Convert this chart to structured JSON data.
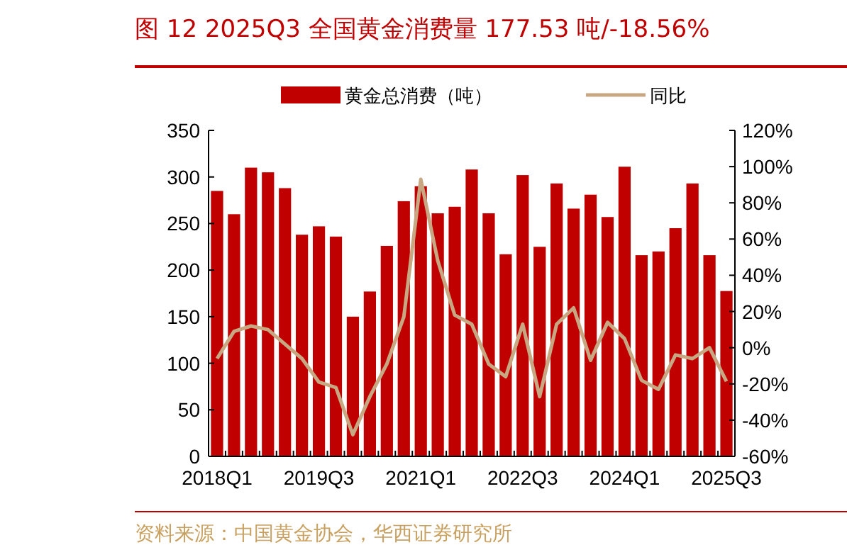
{
  "chart_data": {
    "type": "bar",
    "title": "图 12   2025Q3 全国黄金消费量 177.53 吨/-18.56%",
    "categories": [
      "2018Q1",
      null,
      null,
      null,
      null,
      null,
      "2019Q3",
      null,
      null,
      null,
      null,
      null,
      "2021Q1",
      null,
      null,
      null,
      null,
      null,
      "2022Q3",
      null,
      null,
      null,
      null,
      null,
      "2024Q1",
      null,
      null,
      null,
      null,
      null,
      "2025Q3"
    ],
    "series": [
      {
        "name": "黄金总消费（吨）",
        "color": "#c00000",
        "values": [
          285,
          260,
          310,
          305,
          288,
          238,
          247,
          236,
          150,
          177,
          226,
          274,
          290,
          261,
          268,
          308,
          261,
          217,
          302,
          225,
          293,
          266,
          281,
          257,
          311,
          216,
          220,
          245,
          293,
          216,
          177.53
        ]
      },
      {
        "name": "同比",
        "type": "line",
        "axis": "y2",
        "color": "#c8a882",
        "values": [
          -6,
          9,
          12,
          10,
          2,
          -6,
          -19,
          -22,
          -48,
          -27,
          -9,
          17,
          93,
          48,
          18,
          13,
          -9,
          -16,
          13,
          -27,
          13,
          22,
          -7,
          14,
          5,
          -18,
          -23,
          -4,
          -6,
          0,
          -18.56
        ]
      }
    ],
    "ylim": [
      0,
      350
    ],
    "yticks": [
      0,
      50,
      100,
      150,
      200,
      250,
      300,
      350
    ],
    "y2lim": [
      -60,
      120
    ],
    "y2ticks": [
      {
        "value": -60,
        "label": "-60%"
      },
      {
        "value": -40,
        "label": "-40%"
      },
      {
        "value": -20,
        "label": "-20%"
      },
      {
        "value": 0,
        "label": "0%"
      },
      {
        "value": 20,
        "label": "20%"
      },
      {
        "value": 40,
        "label": "40%"
      },
      {
        "value": 60,
        "label": "60%"
      },
      {
        "value": 80,
        "label": "80%"
      },
      {
        "value": 100,
        "label": "100%"
      },
      {
        "value": 120,
        "label": "120%"
      }
    ],
    "legend": "top",
    "annotations": [
      "资料来源：中国黄金协会，华西证券研究所"
    ]
  }
}
